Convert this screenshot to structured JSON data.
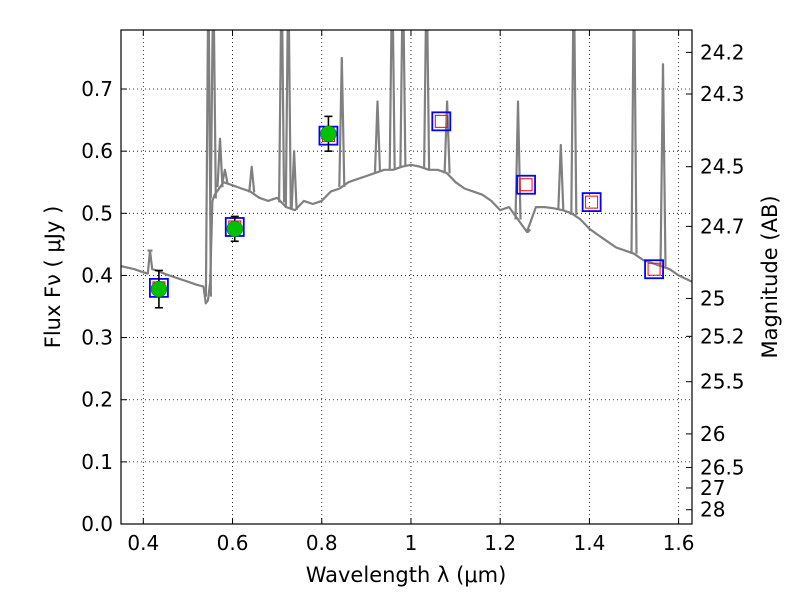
{
  "chart_data": {
    "type": "scatter",
    "title": "",
    "xlabel": "Wavelength  λ (μm)",
    "ylabel": "Flux  Fν  ( μJy )",
    "y2label": "Magnitude (AB)",
    "xlim": [
      0.35,
      1.63
    ],
    "ylim": [
      0.0,
      0.795
    ],
    "grid": true,
    "x_ticks": [
      0.4,
      0.6,
      0.8,
      1.0,
      1.2,
      1.4,
      1.6
    ],
    "x_tick_labels": [
      "0.4",
      "0.6",
      "0.8",
      "1",
      "1.2",
      "1.4",
      "1.6"
    ],
    "y_ticks": [
      0.0,
      0.1,
      0.2,
      0.3,
      0.4,
      0.5,
      0.6,
      0.7
    ],
    "y_tick_labels": [
      "0.0",
      "0.1",
      "0.2",
      "0.3",
      "0.4",
      "0.5",
      "0.6",
      "0.7"
    ],
    "y2_ticks": [
      {
        "label": "24.2",
        "flux": 0.759
      },
      {
        "label": "24.3",
        "flux": 0.692
      },
      {
        "label": "24.5",
        "flux": 0.575
      },
      {
        "label": "24.7",
        "flux": 0.479
      },
      {
        "label": "25",
        "flux": 0.363
      },
      {
        "label": "25.2",
        "flux": 0.302
      },
      {
        "label": "25.5",
        "flux": 0.229
      },
      {
        "label": "26",
        "flux": 0.145
      },
      {
        "label": "26.5",
        "flux": 0.091
      },
      {
        "label": "27",
        "flux": 0.058
      },
      {
        "label": "28",
        "flux": 0.023
      }
    ],
    "colors": {
      "sed": "#808080",
      "observed": "#00c000",
      "model_box": "#0000ff",
      "model_inner": "#ff0000",
      "errorbar": "#000000"
    },
    "series": [
      {
        "kind": "line",
        "points": [
          [
            0.35,
            0.415
          ],
          [
            0.38,
            0.41
          ],
          [
            0.4,
            0.405
          ],
          [
            0.41,
            0.403
          ],
          [
            0.415,
            0.44
          ],
          [
            0.42,
            0.41
          ],
          [
            0.43,
            0.408
          ],
          [
            0.45,
            0.402
          ],
          [
            0.5,
            0.39
          ],
          [
            0.52,
            0.385
          ],
          [
            0.535,
            0.382
          ],
          [
            0.54,
            0.355
          ],
          [
            0.545,
            0.36
          ],
          [
            0.55,
            0.39
          ],
          [
            0.555,
            0.52
          ],
          [
            0.56,
            0.53
          ],
          [
            0.58,
            0.55
          ],
          [
            0.6,
            0.545
          ],
          [
            0.62,
            0.54
          ],
          [
            0.64,
            0.535
          ],
          [
            0.66,
            0.525
          ],
          [
            0.68,
            0.52
          ],
          [
            0.7,
            0.525
          ],
          [
            0.72,
            0.51
          ],
          [
            0.74,
            0.505
          ],
          [
            0.76,
            0.52
          ],
          [
            0.78,
            0.515
          ],
          [
            0.8,
            0.52
          ],
          [
            0.82,
            0.535
          ],
          [
            0.84,
            0.54
          ],
          [
            0.86,
            0.55
          ],
          [
            0.88,
            0.555
          ],
          [
            0.9,
            0.56
          ],
          [
            0.92,
            0.565
          ],
          [
            0.94,
            0.57
          ],
          [
            0.96,
            0.57
          ],
          [
            0.98,
            0.575
          ],
          [
            1.0,
            0.578
          ],
          [
            1.02,
            0.575
          ],
          [
            1.04,
            0.57
          ],
          [
            1.06,
            0.57
          ],
          [
            1.08,
            0.565
          ],
          [
            1.1,
            0.55
          ],
          [
            1.12,
            0.54
          ],
          [
            1.14,
            0.535
          ],
          [
            1.16,
            0.53
          ],
          [
            1.18,
            0.52
          ],
          [
            1.2,
            0.505
          ],
          [
            1.22,
            0.51
          ],
          [
            1.24,
            0.49
          ],
          [
            1.26,
            0.47
          ],
          [
            1.28,
            0.51
          ],
          [
            1.3,
            0.51
          ],
          [
            1.32,
            0.508
          ],
          [
            1.34,
            0.505
          ],
          [
            1.36,
            0.5
          ],
          [
            1.38,
            0.49
          ],
          [
            1.4,
            0.475
          ],
          [
            1.42,
            0.465
          ],
          [
            1.44,
            0.455
          ],
          [
            1.46,
            0.445
          ],
          [
            1.48,
            0.44
          ],
          [
            1.5,
            0.435
          ],
          [
            1.52,
            0.425
          ],
          [
            1.54,
            0.42
          ],
          [
            1.56,
            0.415
          ],
          [
            1.58,
            0.41
          ],
          [
            1.6,
            0.4
          ],
          [
            1.63,
            0.39
          ]
        ],
        "emission_lines": [
          [
            0.415,
            0.44
          ],
          [
            0.546,
            0.9
          ],
          [
            0.557,
            0.9
          ],
          [
            0.572,
            0.62
          ],
          [
            0.583,
            0.57
          ],
          [
            0.643,
            0.575
          ],
          [
            0.71,
            0.9
          ],
          [
            0.725,
            0.9
          ],
          [
            0.738,
            0.6
          ],
          [
            0.845,
            0.75
          ],
          [
            0.925,
            0.68
          ],
          [
            0.958,
            0.9
          ],
          [
            0.982,
            0.9
          ],
          [
            1.035,
            0.9
          ],
          [
            1.081,
            0.68
          ],
          [
            1.24,
            0.68
          ],
          [
            1.262,
            0.47
          ],
          [
            1.336,
            0.61
          ],
          [
            1.365,
            0.9
          ],
          [
            1.5,
            0.9
          ],
          [
            1.565,
            0.74
          ]
        ]
      },
      {
        "kind": "observed",
        "points": [
          {
            "x": 0.435,
            "y": 0.378,
            "err": 0.03
          },
          {
            "x": 0.605,
            "y": 0.475,
            "err": 0.02
          },
          {
            "x": 0.815,
            "y": 0.628,
            "err": 0.028
          }
        ]
      },
      {
        "kind": "model",
        "points": [
          {
            "x": 0.435,
            "y": 0.38
          },
          {
            "x": 0.605,
            "y": 0.478
          },
          {
            "x": 0.815,
            "y": 0.625
          },
          {
            "x": 1.068,
            "y": 0.648
          },
          {
            "x": 1.258,
            "y": 0.546
          },
          {
            "x": 1.405,
            "y": 0.518
          },
          {
            "x": 1.545,
            "y": 0.41
          }
        ]
      }
    ]
  }
}
